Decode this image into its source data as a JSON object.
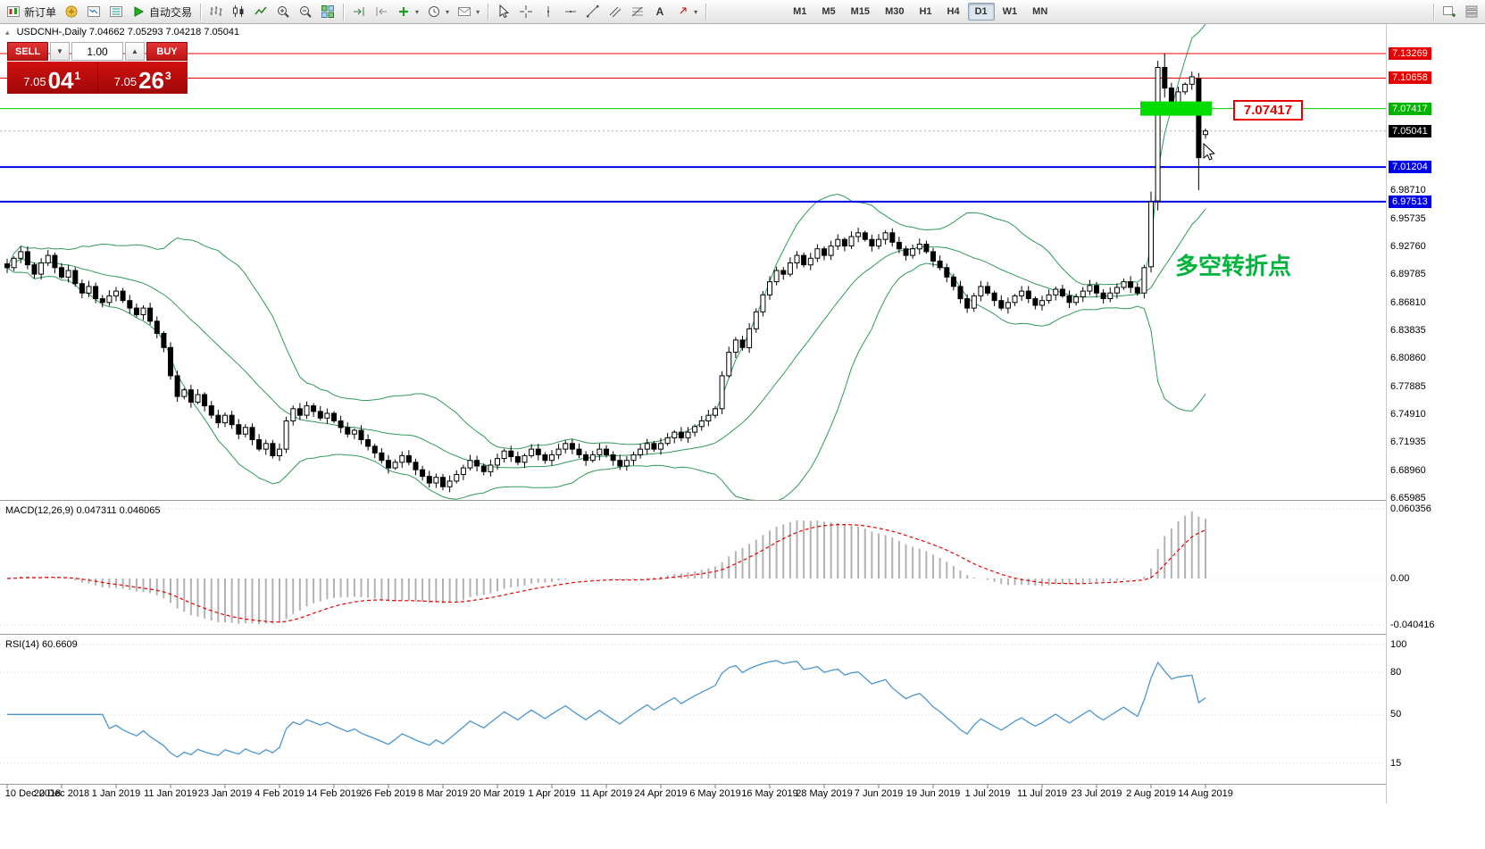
{
  "toolbar": {
    "new_order": "新订单",
    "auto_trading": "自动交易",
    "timeframes": [
      "M1",
      "M5",
      "M15",
      "M30",
      "H1",
      "H4",
      "D1",
      "W1",
      "MN"
    ],
    "active_timeframe": "D1"
  },
  "icons": {
    "caret_down": "▾",
    "collapse": "▴",
    "spinner_up": "▲",
    "spinner_down": "▼"
  },
  "chart": {
    "header": "USDCNH-,Daily 7.04662 7.05293 7.04218 7.05041",
    "annotation": "多空转折点",
    "callout": "7.07417"
  },
  "trade": {
    "sell_label": "SELL",
    "buy_label": "BUY",
    "volume": "1.00",
    "sell_prefix": "7.05",
    "sell_big": "04",
    "sell_sup": "1",
    "buy_prefix": "7.05",
    "buy_big": "26",
    "buy_sup": "3"
  },
  "macd": {
    "header": "MACD(12,26,9) 0.047311 0.046065"
  },
  "rsi": {
    "header": "RSI(14) 60.6609"
  },
  "axes": {
    "price": [
      {
        "label": "7.13269",
        "price": 7.13269,
        "style": "red"
      },
      {
        "label": "7.10658",
        "price": 7.10658,
        "style": "red"
      },
      {
        "label": "7.07417",
        "price": 7.07417,
        "style": "green"
      },
      {
        "label": "7.05041",
        "price": 7.05041,
        "style": "black"
      },
      {
        "label": "7.01204",
        "price": 7.01204,
        "style": "blue"
      },
      {
        "label": "6.98710",
        "price": 6.9871,
        "style": "plain"
      },
      {
        "label": "6.97513",
        "price": 6.97513,
        "style": "blue"
      },
      {
        "label": "6.95735",
        "price": 6.95735,
        "style": "plain"
      },
      {
        "label": "6.92760",
        "price": 6.9276,
        "style": "plain"
      },
      {
        "label": "6.89785",
        "price": 6.89785,
        "style": "plain"
      },
      {
        "label": "6.86810",
        "price": 6.8681,
        "style": "plain"
      },
      {
        "label": "6.83835",
        "price": 6.83835,
        "style": "plain"
      },
      {
        "label": "6.80860",
        "price": 6.8086,
        "style": "plain"
      },
      {
        "label": "6.77885",
        "price": 6.77885,
        "style": "plain"
      },
      {
        "label": "6.74910",
        "price": 6.7491,
        "style": "plain"
      },
      {
        "label": "6.71935",
        "price": 6.71935,
        "style": "plain"
      },
      {
        "label": "6.68960",
        "price": 6.6896,
        "style": "plain"
      },
      {
        "label": "6.65985",
        "price": 6.65985,
        "style": "plain"
      }
    ],
    "macd": [
      {
        "label": "0.060356",
        "value": 0.060356
      },
      {
        "label": "0.00",
        "value": 0
      },
      {
        "label": "-0.040416",
        "value": -0.040416
      }
    ],
    "rsi": [
      {
        "label": "100",
        "value": 100
      },
      {
        "label": "80",
        "value": 80
      },
      {
        "label": "50",
        "value": 50
      },
      {
        "label": "15",
        "value": 15
      }
    ],
    "dates": {
      "bar_step": 8,
      "labels": [
        "10 Dec 2018",
        "20 Dec 2018",
        "1 Jan 2019",
        "11 Jan 2019",
        "23 Jan 2019",
        "4 Feb 2019",
        "14 Feb 2019",
        "26 Feb 2019",
        "8 Mar 2019",
        "20 Mar 2019",
        "1 Apr 2019",
        "11 Apr 2019",
        "24 Apr 2019",
        "6 May 2019",
        "16 May 2019",
        "28 May 2019",
        "7 Jun 2019",
        "19 Jun 2019",
        "1 Jul 2019",
        "11 Jul 2019",
        "23 Jul 2019",
        "2 Aug 2019",
        "14 Aug 2019"
      ]
    }
  },
  "chart_data": {
    "type": "candlestick",
    "symbol": "USDCNH-",
    "period": "Daily",
    "last_bar_ohlc": {
      "open": 7.04662,
      "high": 7.05293,
      "low": 7.04218,
      "close": 7.05041
    },
    "current_price": 7.05041,
    "highlight_box_price": 7.07417,
    "levels": [
      {
        "price": 7.13269,
        "color": "#e80000",
        "width": 1
      },
      {
        "price": 7.10658,
        "color": "#e80000",
        "width": 1
      },
      {
        "price": 7.07417,
        "color": "#00c800",
        "width": 1
      },
      {
        "price": 7.01204,
        "color": "#0000e8",
        "width": 2
      },
      {
        "price": 6.97513,
        "color": "#0000e8",
        "width": 2
      }
    ],
    "closes": [
      6.905,
      6.915,
      6.922,
      6.908,
      6.898,
      6.91,
      6.918,
      6.905,
      6.895,
      6.902,
      6.888,
      6.878,
      6.885,
      6.872,
      6.868,
      6.875,
      6.88,
      6.87,
      6.862,
      6.855,
      6.862,
      6.848,
      6.835,
      6.82,
      6.79,
      6.768,
      6.775,
      6.762,
      6.77,
      6.758,
      6.748,
      6.74,
      6.748,
      6.738,
      6.728,
      6.735,
      6.722,
      6.712,
      6.718,
      6.705,
      6.712,
      6.742,
      6.755,
      6.748,
      6.758,
      6.752,
      6.745,
      6.75,
      6.742,
      6.735,
      6.728,
      6.732,
      6.722,
      6.715,
      6.708,
      6.7,
      6.692,
      6.698,
      6.705,
      6.698,
      6.69,
      6.683,
      6.676,
      6.682,
      6.672,
      6.678,
      6.685,
      6.692,
      6.7,
      6.694,
      6.688,
      6.695,
      6.702,
      6.71,
      6.704,
      6.698,
      6.705,
      6.712,
      6.706,
      6.7,
      6.706,
      6.712,
      6.718,
      6.712,
      6.706,
      6.7,
      6.706,
      6.712,
      6.706,
      6.7,
      6.694,
      6.7,
      6.706,
      6.712,
      6.718,
      6.712,
      6.718,
      6.724,
      6.73,
      6.724,
      6.73,
      6.736,
      6.742,
      6.748,
      6.755,
      6.79,
      6.815,
      6.828,
      6.82,
      6.84,
      6.858,
      6.876,
      6.89,
      6.902,
      6.898,
      6.91,
      6.918,
      6.908,
      6.915,
      6.925,
      6.918,
      6.928,
      6.935,
      6.928,
      6.938,
      6.942,
      6.935,
      6.928,
      6.935,
      6.942,
      6.932,
      6.925,
      6.918,
      6.925,
      6.93,
      6.922,
      6.912,
      6.905,
      6.895,
      6.885,
      6.872,
      6.862,
      6.875,
      6.885,
      6.878,
      6.87,
      6.862,
      6.868,
      6.875,
      6.88,
      6.872,
      6.865,
      6.87,
      6.876,
      6.882,
      6.875,
      6.868,
      6.874,
      6.88,
      6.886,
      6.878,
      6.872,
      6.878,
      6.884,
      6.89,
      6.884,
      6.878,
      6.905,
      6.975,
      7.118,
      7.096,
      7.075,
      7.092,
      7.1,
      7.108,
      7.022,
      7.05041
    ],
    "ohlc_overrides": {
      "168": [
        6.906,
        6.986,
        6.9,
        6.975
      ],
      "169": [
        6.976,
        7.125,
        6.966,
        7.118
      ],
      "170": [
        7.118,
        7.13269,
        7.086,
        7.096
      ],
      "175": [
        7.106,
        7.112,
        6.9875,
        7.022
      ],
      "176": [
        7.04662,
        7.05293,
        7.04218,
        7.05041
      ]
    },
    "indicators": {
      "bollinger": {
        "period": 20,
        "deviation": 2,
        "color": "#2e9b57"
      },
      "macd": {
        "fast": 12,
        "slow": 26,
        "signal": 9,
        "main": 0.047311,
        "signal_value": 0.046065,
        "bar_color": "#b2b2b2",
        "signal_color": "#e80000",
        "range": [
          -0.040416,
          0.060356
        ]
      },
      "rsi": {
        "period": 14,
        "value": 60.6609,
        "color": "#4a96d2",
        "levels": [
          100,
          80,
          50,
          15
        ]
      }
    }
  }
}
